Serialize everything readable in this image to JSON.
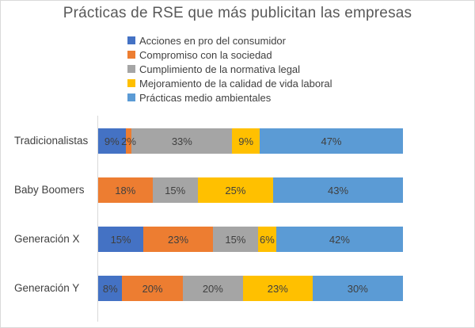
{
  "window": {
    "background": "#ffffff",
    "border_color": "#d9d9d9"
  },
  "chart_data": {
    "type": "bar",
    "variant": "stacked-horizontal-100",
    "title": "Prácticas de RSE que más publicitan las empresas",
    "title_color": "#595959",
    "text_color": "#404040",
    "axis_line_color": "#d9d9d9",
    "legend_position": "top",
    "grid": false,
    "value_suffix": "%",
    "xlabel": "",
    "ylabel": "",
    "categories": [
      "Tradicionalistas",
      "Baby Boomers",
      "Generación X",
      "Generación Y"
    ],
    "series": [
      {
        "name": "Acciones en pro del consumidor",
        "color": "#4472C4",
        "values": [
          9,
          0,
          15,
          8
        ]
      },
      {
        "name": "Compromiso con la sociedad",
        "color": "#ED7D31",
        "values": [
          2,
          18,
          23,
          20
        ]
      },
      {
        "name": "Cumplimiento de la normativa legal",
        "color": "#A5A5A5",
        "values": [
          33,
          15,
          15,
          20
        ]
      },
      {
        "name": "Mejoramiento de la calidad de vida laboral",
        "color": "#FFC000",
        "values": [
          9,
          25,
          6,
          23
        ]
      },
      {
        "name": "Prácticas medio ambientales",
        "color": "#5B9BD5",
        "values": [
          47,
          43,
          42,
          30
        ]
      }
    ]
  }
}
